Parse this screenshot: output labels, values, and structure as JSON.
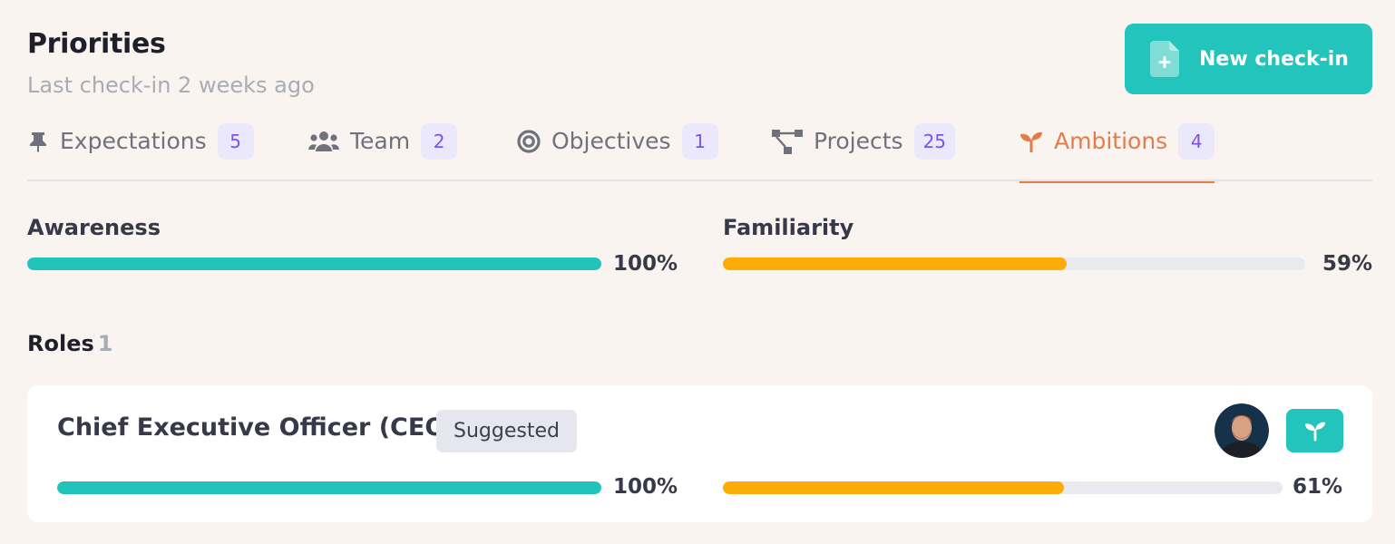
{
  "header": {
    "title": "Priorities",
    "subtitle": "Last check-in 2 weeks ago",
    "new_checkin_label": "New check-in",
    "new_checkin_icon": "file-plus-icon"
  },
  "tabs": [
    {
      "label": "Expectations",
      "count": "5",
      "icon": "pin-icon",
      "active": false
    },
    {
      "label": "Team",
      "count": "2",
      "icon": "users-icon",
      "active": false
    },
    {
      "label": "Objectives",
      "count": "1",
      "icon": "target-icon",
      "active": false
    },
    {
      "label": "Projects",
      "count": "25",
      "icon": "project-tree-icon",
      "active": false
    },
    {
      "label": "Ambitions",
      "count": "4",
      "icon": "sprout-icon",
      "active": true
    }
  ],
  "summary": {
    "awareness": {
      "label": "Awareness",
      "value": 100,
      "display": "100%"
    },
    "familiarity": {
      "label": "Familiarity",
      "value": 59,
      "display": "59%"
    }
  },
  "roles": {
    "heading": "Roles",
    "count": "1",
    "items": [
      {
        "title": "Chief Executive Officer (CEO)",
        "badge": "Suggested",
        "awareness": {
          "value": 100,
          "display": "100%"
        },
        "familiarity": {
          "value": 61,
          "display": "61%"
        }
      }
    ]
  },
  "colors": {
    "accent_teal": "#21c4bb",
    "accent_orange": "#fdab07",
    "active_tab": "#e27d4b",
    "badge_bg": "#ece8fb",
    "badge_text": "#7a55e8",
    "background": "#f9f4ef"
  }
}
